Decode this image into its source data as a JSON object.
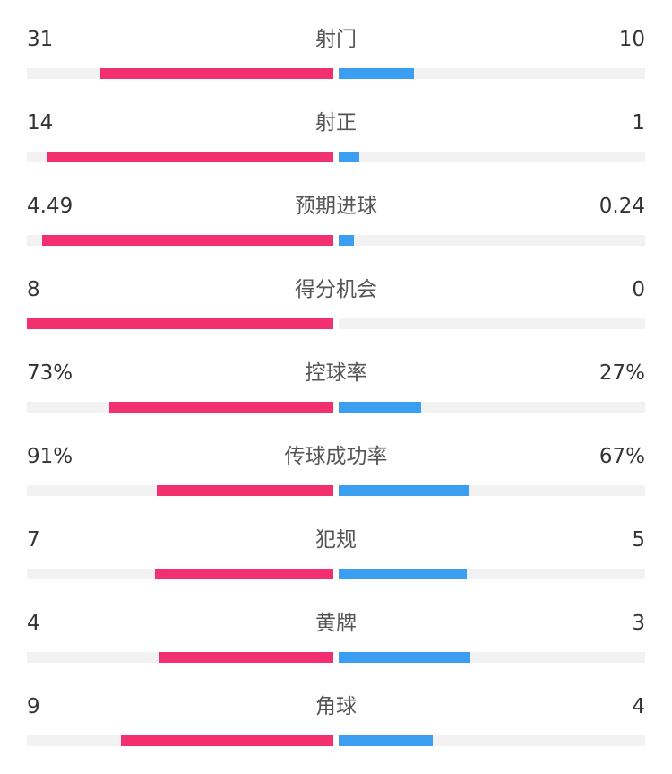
{
  "colors": {
    "home": "#f3306f",
    "away": "#3b9ef0",
    "track": "#f2f2f2",
    "text": "#333333"
  },
  "stats": [
    {
      "label": "射门",
      "home": "31",
      "away": "10",
      "home_fill": 0.76,
      "away_fill": 0.245
    },
    {
      "label": "射正",
      "home": "14",
      "away": "1",
      "home_fill": 0.935,
      "away_fill": 0.068
    },
    {
      "label": "预期进球",
      "home": "4.49",
      "away": "0.24",
      "home_fill": 0.95,
      "away_fill": 0.05
    },
    {
      "label": "得分机会",
      "home": "8",
      "away": "0",
      "home_fill": 1.0,
      "away_fill": 0.0
    },
    {
      "label": "控球率",
      "home": "73%",
      "away": "27%",
      "home_fill": 0.73,
      "away_fill": 0.27
    },
    {
      "label": "传球成功率",
      "home": "91%",
      "away": "67%",
      "home_fill": 0.575,
      "away_fill": 0.425
    },
    {
      "label": "犯规",
      "home": "7",
      "away": "5",
      "home_fill": 0.583,
      "away_fill": 0.417
    },
    {
      "label": "黄牌",
      "home": "4",
      "away": "3",
      "home_fill": 0.571,
      "away_fill": 0.429
    },
    {
      "label": "角球",
      "home": "9",
      "away": "4",
      "home_fill": 0.692,
      "away_fill": 0.308
    }
  ]
}
